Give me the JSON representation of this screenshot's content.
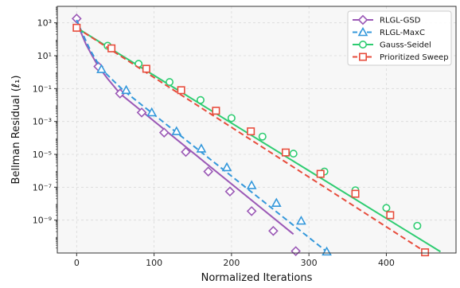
{
  "chart_data": {
    "type": "line",
    "title": "",
    "xlabel": "Normalized Iterations",
    "ylabel": "Bellman Residual (ℓ₁)",
    "xlim": [
      -25,
      490
    ],
    "ylim": [
      1e-11,
      10000.0
    ],
    "yscale": "log",
    "grid": true,
    "legend_position": "top-right",
    "xticks": [
      0,
      100,
      200,
      300,
      400
    ],
    "xtick_labels": [
      "0",
      "100",
      "200",
      "300",
      "400"
    ],
    "yticks": [
      1e-09,
      1e-07,
      1e-05,
      0.001,
      0.1,
      10,
      1000
    ],
    "ytick_labels": [
      "10⁻⁹",
      "10⁻⁷",
      "10⁻⁵",
      "10⁻³",
      "10⁻¹",
      "10¹",
      "10³"
    ],
    "series": [
      {
        "name": "RLGL-GSD",
        "color": "#9b59b6",
        "linestyle": "solid",
        "marker": "diamond",
        "line": [
          [
            0,
            1800
          ],
          [
            5,
            300
          ],
          [
            12,
            50
          ],
          [
            20,
            10
          ],
          [
            28,
            2.2
          ],
          [
            40,
            0.4
          ],
          [
            56,
            0.05
          ],
          [
            280,
            1.4e-10
          ]
        ],
        "markers": [
          [
            0,
            1800
          ],
          [
            28,
            2.2
          ],
          [
            56,
            0.05
          ],
          [
            84,
            0.0035
          ],
          [
            113,
            0.00021
          ],
          [
            141,
            1.4e-05
          ],
          [
            170,
            9e-07
          ],
          [
            198,
            5.5e-08
          ],
          [
            226,
            3.5e-09
          ],
          [
            254,
            2.2e-10
          ],
          [
            283,
            1.3e-11
          ]
        ]
      },
      {
        "name": "RLGL-MaxC",
        "color": "#3498db",
        "linestyle": "dashed",
        "marker": "triangle",
        "line": [
          [
            0,
            1500
          ],
          [
            8,
            200
          ],
          [
            18,
            20
          ],
          [
            32,
            1.5
          ],
          [
            60,
            0.08
          ],
          [
            322,
            1.3e-11
          ]
        ],
        "markers": [
          [
            32,
            1.5
          ],
          [
            64,
            0.08
          ],
          [
            97,
            0.0035
          ],
          [
            129,
            0.00025
          ],
          [
            161,
            2.2e-05
          ],
          [
            194,
            1.6e-06
          ],
          [
            226,
            1.3e-07
          ],
          [
            258,
            1.1e-08
          ],
          [
            290,
            9e-10
          ],
          [
            323,
            1.2e-11
          ]
        ]
      },
      {
        "name": "Gauss-Seidel",
        "color": "#2ecc71",
        "linestyle": "solid",
        "marker": "circle",
        "line": [
          [
            0,
            500
          ],
          [
            470,
            1.2e-11
          ]
        ],
        "markers": [
          [
            40,
            40
          ],
          [
            80,
            3.2
          ],
          [
            120,
            0.25
          ],
          [
            160,
            0.02
          ],
          [
            200,
            0.0016
          ],
          [
            240,
            0.00012
          ],
          [
            280,
            1.1e-05
          ],
          [
            320,
            9e-07
          ],
          [
            360,
            6.5e-08
          ],
          [
            400,
            5.5e-09
          ],
          [
            440,
            4.5e-10
          ]
        ]
      },
      {
        "name": "Prioritized Sweep",
        "color": "#e74c3c",
        "linestyle": "dashed",
        "marker": "square",
        "line": [
          [
            0,
            500
          ],
          [
            450,
            1.2e-11
          ]
        ],
        "markers": [
          [
            0,
            500
          ],
          [
            45,
            28
          ],
          [
            90,
            1.6
          ],
          [
            135,
            0.08
          ],
          [
            180,
            0.0045
          ],
          [
            225,
            0.00025
          ],
          [
            270,
            1.3e-05
          ],
          [
            315,
            6.5e-07
          ],
          [
            360,
            4e-08
          ],
          [
            405,
            2e-09
          ],
          [
            450,
            1.1e-11
          ]
        ]
      }
    ]
  }
}
